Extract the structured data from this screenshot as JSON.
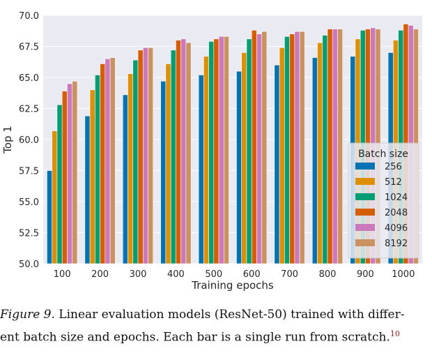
{
  "chart_data": {
    "type": "bar",
    "xlabel": "Training epochs",
    "ylabel": "Top 1",
    "ylim": [
      50.0,
      70.0
    ],
    "yticks": [
      "50.0",
      "52.5",
      "55.0",
      "57.5",
      "60.0",
      "62.5",
      "65.0",
      "67.5",
      "70.0"
    ],
    "categories": [
      "100",
      "200",
      "300",
      "400",
      "500",
      "600",
      "700",
      "800",
      "900",
      "1000"
    ],
    "legend_title": "Batch size",
    "legend_position": "right",
    "grid": true,
    "series": [
      {
        "name": "256",
        "color": "#0173b2",
        "values": [
          57.5,
          61.9,
          63.6,
          64.7,
          65.2,
          65.5,
          66.0,
          66.6,
          66.7,
          67.0
        ]
      },
      {
        "name": "512",
        "color": "#de8f05",
        "values": [
          60.7,
          64.0,
          65.3,
          66.1,
          66.7,
          67.0,
          67.4,
          67.8,
          68.1,
          68.0
        ]
      },
      {
        "name": "1024",
        "color": "#029e73",
        "values": [
          62.8,
          65.2,
          66.4,
          67.2,
          67.9,
          68.1,
          68.3,
          68.4,
          68.8,
          68.8
        ]
      },
      {
        "name": "2048",
        "color": "#d55e00",
        "values": [
          63.9,
          66.1,
          67.2,
          68.0,
          68.1,
          68.8,
          68.5,
          68.9,
          68.9,
          69.3
        ]
      },
      {
        "name": "4096",
        "color": "#cc78bc",
        "values": [
          64.5,
          66.5,
          67.4,
          68.1,
          68.3,
          68.5,
          68.7,
          68.9,
          69.0,
          69.2
        ]
      },
      {
        "name": "8192",
        "color": "#ca9161",
        "values": [
          64.7,
          66.6,
          67.4,
          67.8,
          68.3,
          68.7,
          68.7,
          68.9,
          68.9,
          68.9
        ]
      }
    ]
  },
  "caption": {
    "figure_label": "Figure 9.",
    "line1": "Linear evaluation models (ResNet-50) trained with differ-",
    "line2": "ent batch size and epochs. Each bar is a single run from scratch.",
    "footnote": "10"
  }
}
